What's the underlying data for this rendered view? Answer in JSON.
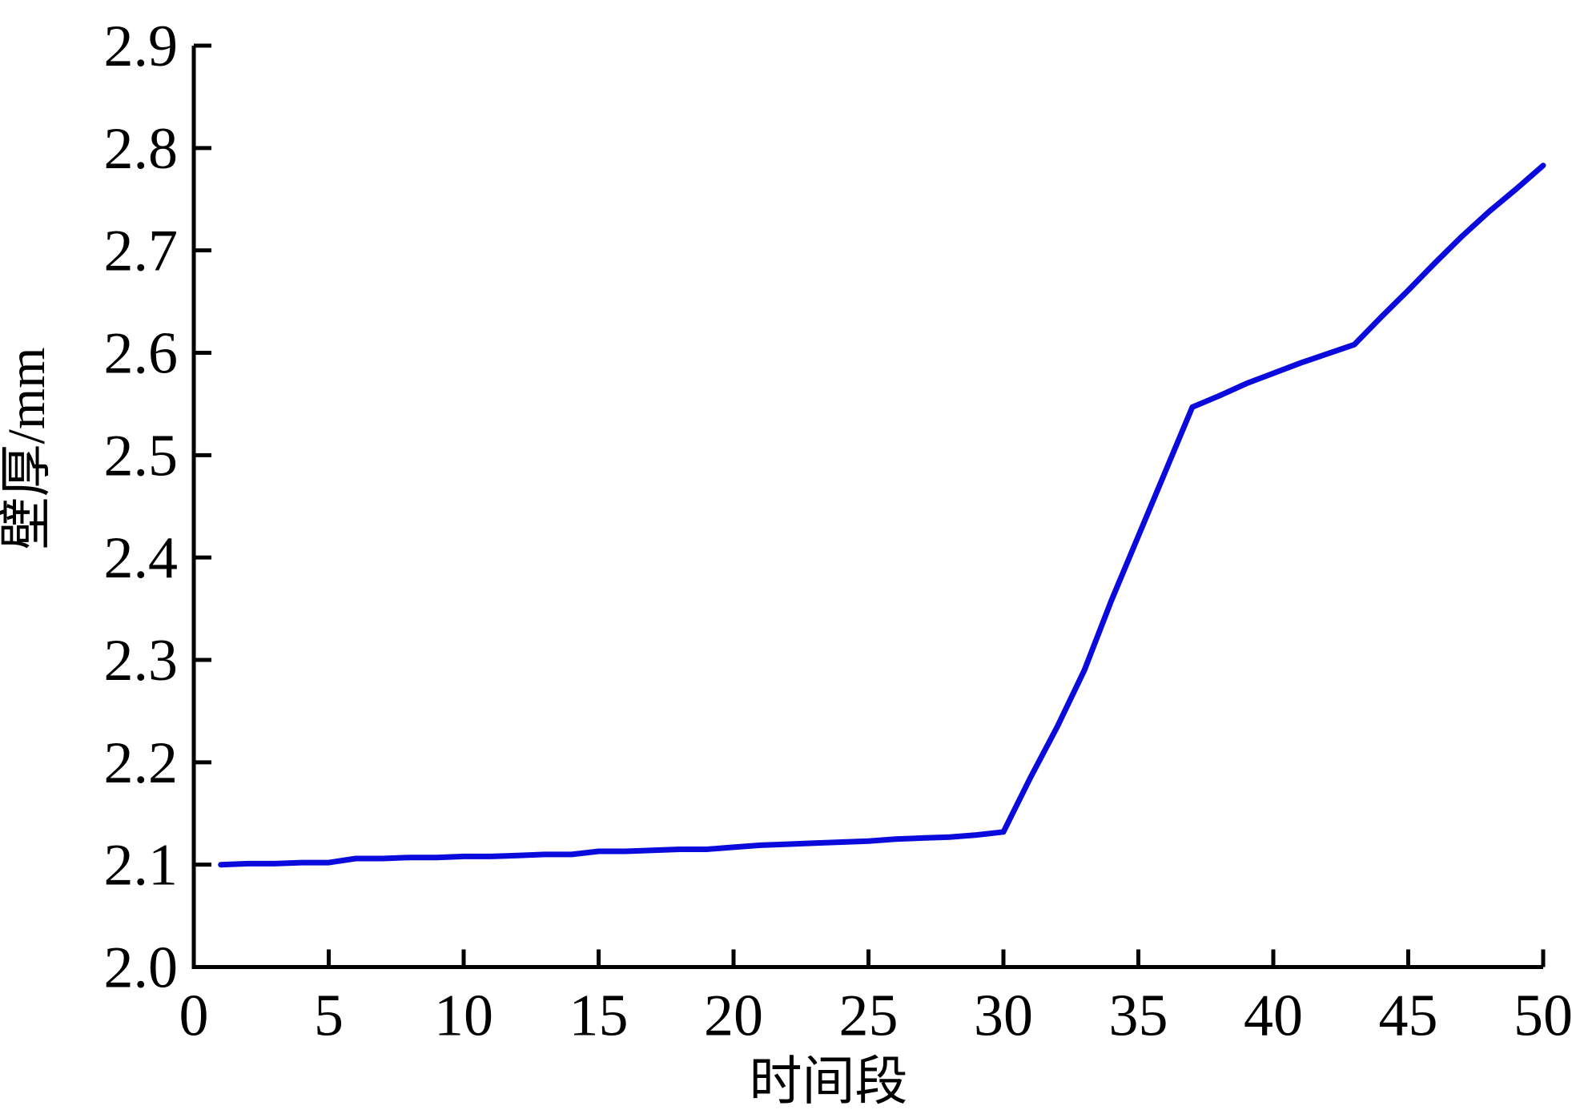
{
  "figure": {
    "background_color": "#ffffff",
    "axes_color": "#000000"
  },
  "chart_data": {
    "type": "line",
    "title": "",
    "xlabel": "时间段",
    "ylabel": "壁厚/mm",
    "xlim": [
      0,
      50
    ],
    "ylim": [
      2.0,
      2.9
    ],
    "x_ticks": [
      0,
      5,
      10,
      15,
      20,
      25,
      30,
      35,
      40,
      45,
      50
    ],
    "x_tick_labels": [
      "0",
      "5",
      "10",
      "15",
      "20",
      "25",
      "30",
      "35",
      "40",
      "45",
      "50"
    ],
    "y_ticks": [
      2.0,
      2.1,
      2.2,
      2.3,
      2.4,
      2.5,
      2.6,
      2.7,
      2.8,
      2.9
    ],
    "y_tick_labels": [
      "2.0",
      "2.1",
      "2.2",
      "2.3",
      "2.4",
      "2.5",
      "2.6",
      "2.7",
      "2.8",
      "2.9"
    ],
    "grid": false,
    "legend": "none",
    "line_color": "#0a0adc",
    "series": [
      {
        "name": "壁厚",
        "x": [
          1,
          2,
          3,
          4,
          5,
          6,
          7,
          8,
          9,
          10,
          11,
          12,
          13,
          14,
          15,
          16,
          17,
          18,
          19,
          20,
          21,
          22,
          23,
          24,
          25,
          26,
          27,
          28,
          29,
          30,
          31,
          32,
          33,
          34,
          35,
          36,
          37,
          38,
          39,
          40,
          41,
          42,
          43,
          44,
          45,
          46,
          47,
          48,
          49,
          50
        ],
        "y": [
          2.1,
          2.101,
          2.101,
          2.102,
          2.102,
          2.106,
          2.106,
          2.107,
          2.107,
          2.108,
          2.108,
          2.109,
          2.11,
          2.11,
          2.113,
          2.113,
          2.114,
          2.115,
          2.115,
          2.117,
          2.119,
          2.12,
          2.121,
          2.122,
          2.123,
          2.125,
          2.126,
          2.127,
          2.129,
          2.132,
          2.185,
          2.235,
          2.29,
          2.358,
          2.421,
          2.484,
          2.547,
          2.558,
          2.57,
          2.58,
          2.59,
          2.599,
          2.608,
          2.635,
          2.661,
          2.688,
          2.714,
          2.738,
          2.76,
          2.783
        ]
      }
    ]
  }
}
